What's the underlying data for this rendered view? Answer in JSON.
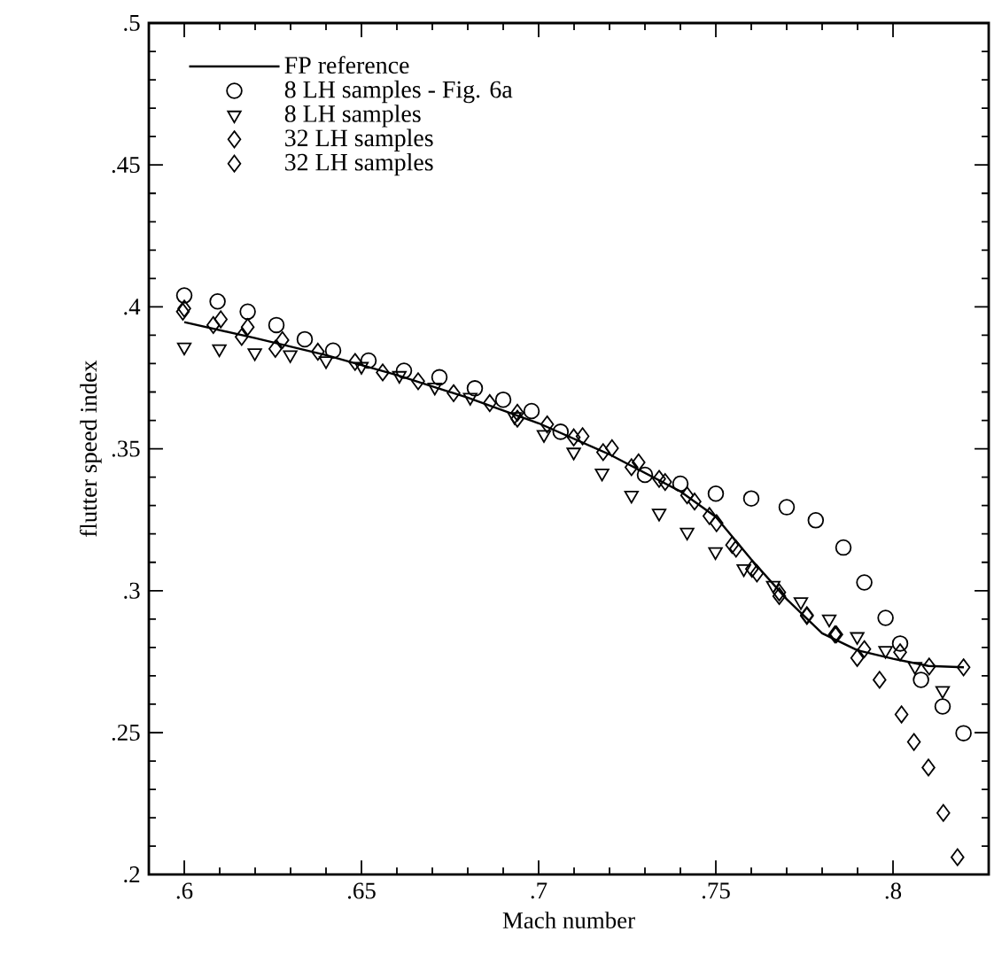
{
  "chart_data": {
    "type": "scatter",
    "xlabel": "Mach number",
    "ylabel": "flutter speed index",
    "xlim": [
      0.59,
      0.827
    ],
    "ylim": [
      0.2,
      0.5
    ],
    "xticks": [
      {
        "value": 0.6,
        "label": ".6"
      },
      {
        "value": 0.65,
        "label": ".65"
      },
      {
        "value": 0.7,
        "label": ".7"
      },
      {
        "value": 0.75,
        "label": ".75"
      },
      {
        "value": 0.8,
        "label": ".8"
      }
    ],
    "yticks": [
      {
        "value": 0.2,
        "label": ".2"
      },
      {
        "value": 0.25,
        "label": ".25"
      },
      {
        "value": 0.3,
        "label": ".3"
      },
      {
        "value": 0.35,
        "label": ".35"
      },
      {
        "value": 0.4,
        "label": ".4"
      },
      {
        "value": 0.45,
        "label": ".45"
      },
      {
        "value": 0.5,
        "label": ".5"
      }
    ],
    "grid": false,
    "legend": "top left",
    "series": [
      {
        "name": "FP reference",
        "type": "line",
        "color": "#000000",
        "marker": "none",
        "line_style": "solid",
        "x": [
          0.6,
          0.62,
          0.64,
          0.66,
          0.68,
          0.7,
          0.72,
          0.74,
          0.75,
          0.76,
          0.77,
          0.78,
          0.79,
          0.8,
          0.81,
          0.82
        ],
        "values": [
          0.3946,
          0.389,
          0.383,
          0.376,
          0.368,
          0.359,
          0.348,
          0.335,
          0.326,
          0.311,
          0.297,
          0.285,
          0.279,
          0.276,
          0.2735,
          0.273
        ]
      },
      {
        "name": "8 LH samples - Fig. 6a",
        "color": "#000000",
        "marker": "circle",
        "x": [
          0.6,
          0.6094,
          0.6179,
          0.626,
          0.634,
          0.642,
          0.652,
          0.662,
          0.672,
          0.682,
          0.69,
          0.698,
          0.7062,
          0.73,
          0.74,
          0.75,
          0.76,
          0.77,
          0.7782,
          0.786,
          0.7919,
          0.7979,
          0.802,
          0.8079,
          0.814,
          0.8199
        ],
        "values": [
          0.404,
          0.4019,
          0.3983,
          0.3936,
          0.3886,
          0.3846,
          0.3811,
          0.3775,
          0.3752,
          0.3713,
          0.3673,
          0.3633,
          0.356,
          0.3408,
          0.3377,
          0.3342,
          0.3325,
          0.3294,
          0.3248,
          0.3152,
          0.3029,
          0.2904,
          0.2814,
          0.2686,
          0.2592,
          0.2498
        ]
      },
      {
        "name": "8 LH samples",
        "color": "#000000",
        "marker": "triangle",
        "x": [
          0.6,
          0.6099,
          0.6199,
          0.6299,
          0.64,
          0.65,
          0.6607,
          0.6707,
          0.6807,
          0.6932,
          0.7015,
          0.7099,
          0.7179,
          0.7262,
          0.734,
          0.7419,
          0.7499,
          0.7579,
          0.7662,
          0.774,
          0.782,
          0.7899,
          0.7979,
          0.8062,
          0.814
        ],
        "values": [
          0.3858,
          0.3852,
          0.3838,
          0.3831,
          0.381,
          0.379,
          0.3758,
          0.3717,
          0.3681,
          0.3613,
          0.355,
          0.3488,
          0.3414,
          0.3336,
          0.3273,
          0.3206,
          0.3137,
          0.3077,
          0.3019,
          0.2961,
          0.29,
          0.2838,
          0.2789,
          0.2733,
          0.2648
        ]
      },
      {
        "name": "32 LH samples",
        "color": "#000000",
        "marker": "diamond",
        "x": [
          0.5996,
          0.6082,
          0.6162,
          0.6257,
          0.694,
          0.7124,
          0.7207,
          0.7282,
          0.7357,
          0.744,
          0.7502,
          0.7557,
          0.7616,
          0.7679,
          0.7757,
          0.7836,
          0.7899,
          0.7962,
          0.8024,
          0.8059,
          0.81,
          0.8142,
          0.8182
        ],
        "values": [
          0.3983,
          0.3936,
          0.3894,
          0.3852,
          0.3606,
          0.3544,
          0.3502,
          0.3452,
          0.3383,
          0.3314,
          0.3238,
          0.3148,
          0.3061,
          0.2981,
          0.2911,
          0.2846,
          0.2763,
          0.2686,
          0.2564,
          0.2467,
          0.2377,
          0.2217,
          0.2061
        ]
      },
      {
        "name": "32 LH samples",
        "color": "#000000",
        "marker": "diamond",
        "x": [
          0.6,
          0.6103,
          0.6179,
          0.6277,
          0.6377,
          0.6482,
          0.656,
          0.666,
          0.676,
          0.6862,
          0.694,
          0.7024,
          0.7099,
          0.7182,
          0.7262,
          0.734,
          0.7419,
          0.7482,
          0.7546,
          0.7602,
          0.7679,
          0.7757,
          0.784,
          0.7919,
          0.802,
          0.8102,
          0.8199
        ],
        "values": [
          0.3994,
          0.3956,
          0.3929,
          0.3883,
          0.3842,
          0.3806,
          0.3769,
          0.3738,
          0.3696,
          0.3661,
          0.3627,
          0.3586,
          0.354,
          0.3488,
          0.3435,
          0.3394,
          0.3336,
          0.3263,
          0.3161,
          0.3077,
          0.2994,
          0.2914,
          0.2846,
          0.2794,
          0.2783,
          0.2733,
          0.273
        ]
      }
    ]
  }
}
